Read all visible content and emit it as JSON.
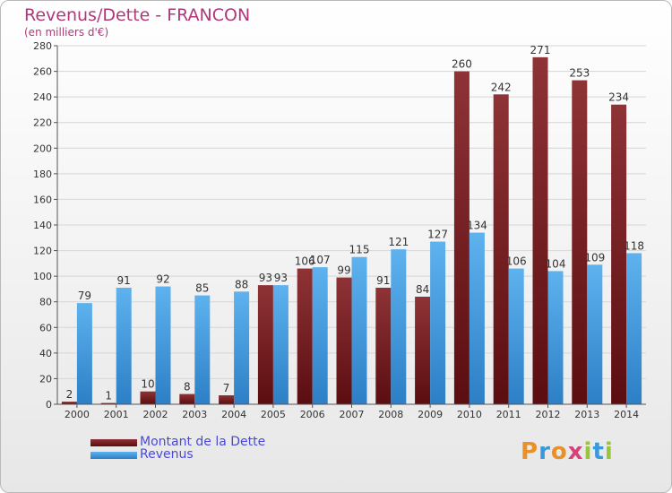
{
  "header": {
    "title": "Revenus/Dette - FRANCON",
    "subtitle": "(en milliers d'€)"
  },
  "legend": {
    "debt_label": "Montant de la Dette",
    "revenue_label": "Revenus"
  },
  "brand": {
    "letters": [
      "P",
      "r",
      "o",
      "x",
      "i",
      "t",
      "i"
    ],
    "colors": [
      "#e8902a",
      "#3a9ad9",
      "#e8902a",
      "#d8407a",
      "#9ac43a",
      "#3a9ad9",
      "#9ac43a"
    ]
  },
  "colors": {
    "debt": "#7a1a1c",
    "revenue": "#4aa0e0",
    "title": "#b0387a",
    "legend_text": "#4a4ad6"
  },
  "chart_data": {
    "type": "bar",
    "title": "Revenus/Dette - FRANCON",
    "subtitle": "(en milliers d'€)",
    "categories": [
      "2000",
      "2001",
      "2002",
      "2003",
      "2004",
      "2005",
      "2006",
      "2007",
      "2008",
      "2009",
      "2010",
      "2011",
      "2012",
      "2013",
      "2014"
    ],
    "series": [
      {
        "name": "Montant de la Dette",
        "values": [
          2,
          1,
          10,
          8,
          7,
          93,
          106,
          99,
          91,
          84,
          260,
          242,
          271,
          253,
          234
        ]
      },
      {
        "name": "Revenus",
        "values": [
          79,
          91,
          92,
          85,
          88,
          93,
          107,
          115,
          121,
          127,
          134,
          106,
          104,
          109,
          118
        ]
      }
    ],
    "ylim": [
      0,
      280
    ],
    "yticks": [
      0,
      20,
      40,
      60,
      80,
      100,
      120,
      140,
      160,
      180,
      200,
      220,
      240,
      260,
      280
    ],
    "grid": true,
    "legend_position": "bottom-left"
  }
}
